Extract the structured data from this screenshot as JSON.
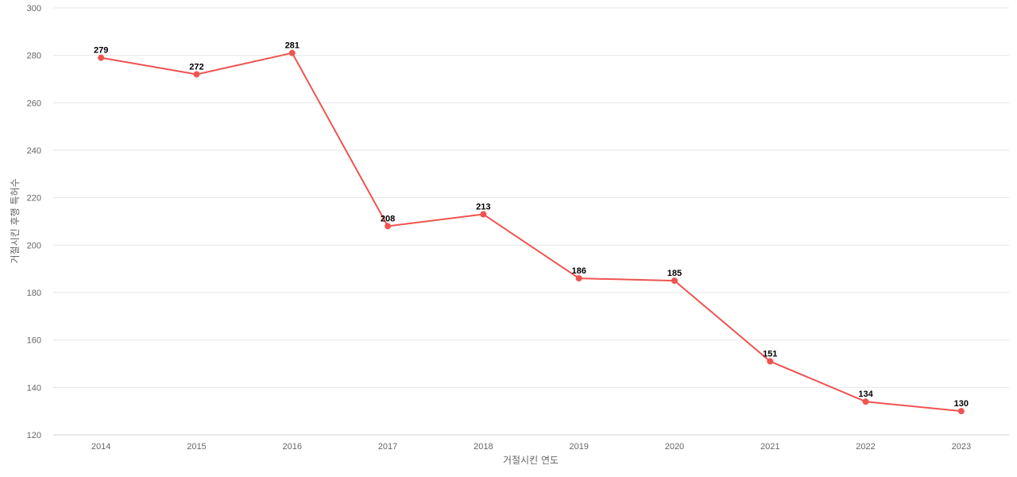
{
  "chart_data": {
    "type": "line",
    "title": "",
    "xlabel": "거절시킨 연도",
    "ylabel": "거절시킨 후행 특허수",
    "categories": [
      "2014",
      "2015",
      "2016",
      "2017",
      "2018",
      "2019",
      "2020",
      "2021",
      "2022",
      "2023"
    ],
    "series": [
      {
        "values": [
          279,
          272,
          281,
          208,
          213,
          186,
          185,
          151,
          134,
          130
        ],
        "color": "#ef5350"
      }
    ],
    "ylim": [
      120,
      300
    ],
    "yticks": [
      120,
      140,
      160,
      180,
      200,
      220,
      240,
      260,
      280,
      300
    ],
    "grid": true,
    "legend": "none",
    "data_labels": true
  }
}
